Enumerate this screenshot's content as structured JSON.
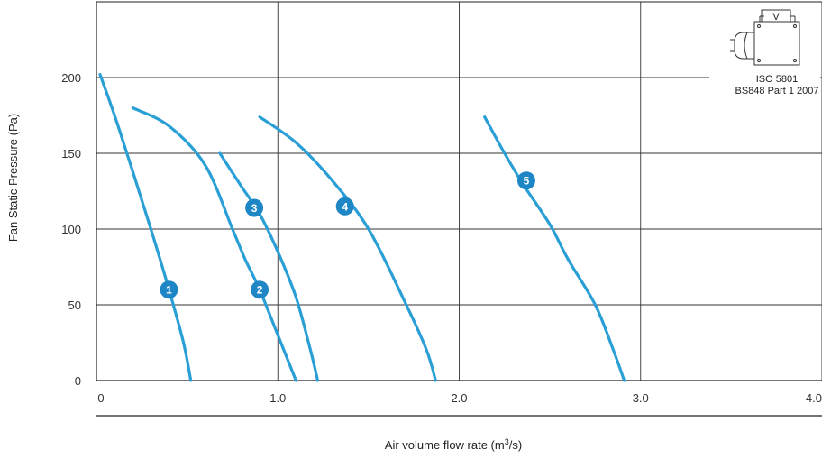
{
  "chart_data": {
    "type": "line",
    "title": "",
    "xlabel": "Air volume flow rate (m",
    "xlabel_sup": "3",
    "xlabel_tail": "/s)",
    "ylabel": "Fan Static Pressure (Pa)",
    "xlim": [
      0,
      4.0
    ],
    "ylim": [
      0,
      250
    ],
    "x_ticks": [
      0,
      1.0,
      2.0,
      3.0,
      4.0
    ],
    "x_tick_labels": [
      "0",
      "1.0",
      "2.0",
      "3.0",
      "4.0"
    ],
    "y_ticks": [
      0,
      50,
      100,
      150,
      200
    ],
    "y_tick_labels": [
      "0",
      "50",
      "100",
      "150",
      "200"
    ],
    "grid": true,
    "line_color": "#2a9fd6",
    "marker_color": "#1f86c6",
    "standard_lines": [
      "ISO 5801",
      "BS848 Part 1 2007"
    ],
    "diagram_icon": "fan-test-rig-icon",
    "diagram_icon_label": "V",
    "series": [
      {
        "name": "1",
        "label_at": [
          0.4,
          60
        ],
        "points": [
          [
            0.02,
            202
          ],
          [
            0.1,
            175
          ],
          [
            0.2,
            138
          ],
          [
            0.3,
            100
          ],
          [
            0.4,
            60
          ],
          [
            0.48,
            25
          ],
          [
            0.52,
            0
          ]
        ]
      },
      {
        "name": "2",
        "label_at": [
          0.9,
          60
        ],
        "points": [
          [
            0.2,
            180
          ],
          [
            0.4,
            168
          ],
          [
            0.6,
            142
          ],
          [
            0.75,
            100
          ],
          [
            0.82,
            80
          ],
          [
            0.9,
            60
          ],
          [
            1.0,
            30
          ],
          [
            1.1,
            0
          ]
        ]
      },
      {
        "name": "3",
        "label_at": [
          0.87,
          114
        ],
        "points": [
          [
            0.68,
            150
          ],
          [
            0.8,
            128
          ],
          [
            0.9,
            110
          ],
          [
            1.0,
            85
          ],
          [
            1.1,
            55
          ],
          [
            1.18,
            20
          ],
          [
            1.22,
            0
          ]
        ]
      },
      {
        "name": "4",
        "label_at": [
          1.37,
          115
        ],
        "points": [
          [
            0.9,
            174
          ],
          [
            1.1,
            157
          ],
          [
            1.3,
            132
          ],
          [
            1.5,
            100
          ],
          [
            1.7,
            52
          ],
          [
            1.82,
            20
          ],
          [
            1.87,
            0
          ]
        ]
      },
      {
        "name": "5",
        "label_at": [
          2.37,
          132
        ],
        "points": [
          [
            2.14,
            174
          ],
          [
            2.25,
            150
          ],
          [
            2.35,
            130
          ],
          [
            2.5,
            103
          ],
          [
            2.6,
            80
          ],
          [
            2.75,
            50
          ],
          [
            2.85,
            20
          ],
          [
            2.91,
            0
          ]
        ]
      }
    ]
  }
}
